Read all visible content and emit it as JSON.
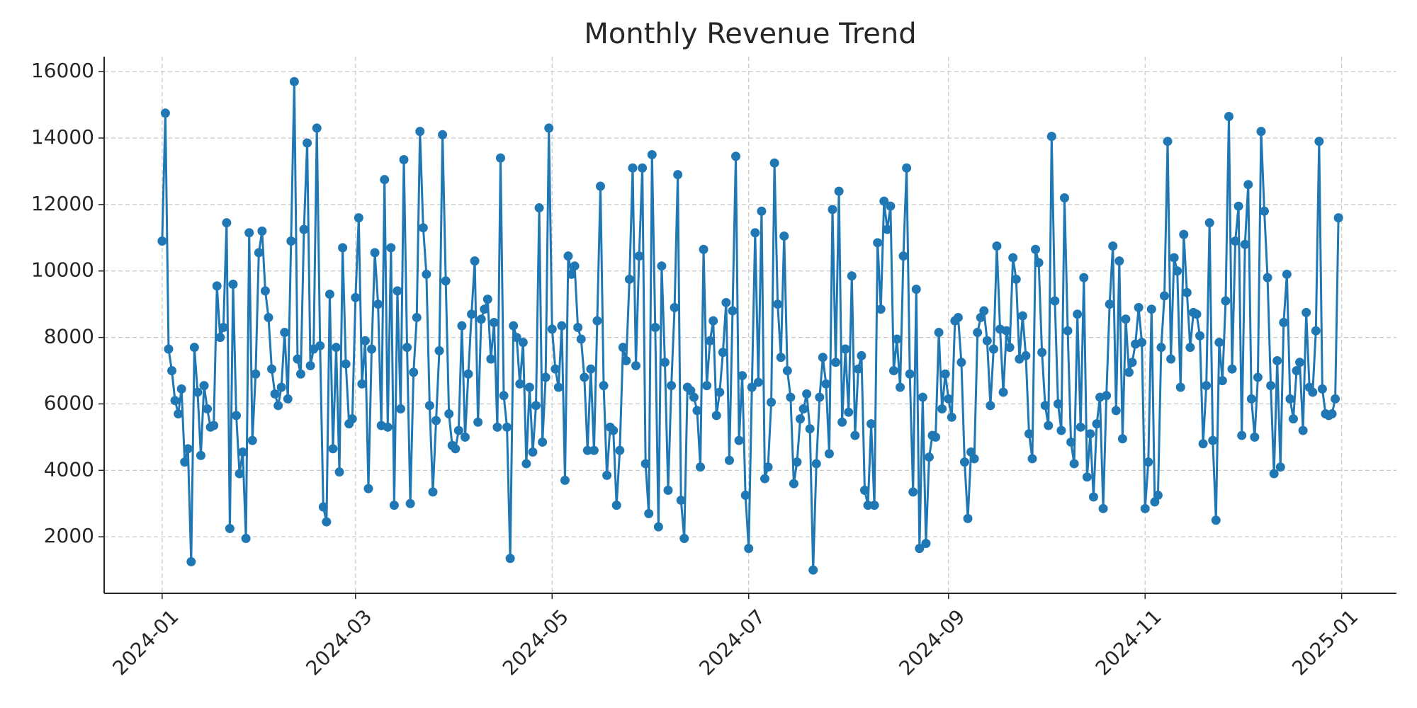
{
  "chart_data": {
    "type": "line",
    "title": "Monthly Revenue Trend",
    "series": [
      {
        "color": "#1f77b4",
        "values": [
          10900,
          14750,
          7650,
          7000,
          6100,
          5700,
          6450,
          4250,
          4650,
          1250,
          7700,
          6350,
          4450,
          6550,
          5850,
          5300,
          5350,
          9550,
          8000,
          8300,
          11450,
          2250,
          9600,
          5650,
          3900,
          4550,
          1950,
          11150,
          4900,
          6900,
          10550,
          11200,
          9400,
          8600,
          7050,
          6300,
          5950,
          6500,
          8150,
          6150,
          10900,
          15700,
          7350,
          6900,
          11250,
          13850,
          7150,
          7650,
          14300,
          7750,
          2900,
          2450,
          9300,
          4650,
          7700,
          3950,
          10700,
          7200,
          5400,
          5550,
          9200,
          11600,
          6600,
          7900,
          3450,
          7650,
          10550,
          9000,
          5350,
          12750,
          5300,
          10700,
          2950,
          9400,
          5850,
          13350,
          7700,
          3000,
          6950,
          8600,
          14200,
          11300,
          9900,
          5950,
          3350,
          5500,
          7600,
          14100,
          9700,
          5700,
          4750,
          4650,
          5200,
          8350,
          5000,
          6900,
          8700,
          10300,
          5450,
          8550,
          8850,
          9150,
          7350,
          8450,
          5300,
          13400,
          6250,
          5300,
          1350,
          8350,
          8000,
          6600,
          7850,
          4200,
          6500,
          4550,
          5950,
          11900,
          4850,
          6800,
          14300,
          8250,
          7050,
          6500,
          8350,
          3700,
          10450,
          9900,
          10150,
          8300,
          7950,
          6800,
          4600,
          7050,
          4600,
          8500,
          12550,
          6550,
          3850,
          5300,
          5200,
          2950,
          4600,
          7700,
          7300,
          9750,
          13100,
          7150,
          10450,
          13100,
          4200,
          2700,
          13500,
          8300,
          2300,
          10150,
          7250,
          3400,
          6550,
          8900,
          12900,
          3100,
          1950,
          6500,
          6400,
          6200,
          5800,
          4100,
          10650,
          6550,
          7900,
          8500,
          5650,
          6350,
          7550,
          9050,
          4300,
          8800,
          13450,
          4900,
          6850,
          3250,
          1650,
          6500,
          11150,
          6650,
          11800,
          3750,
          4100,
          6050,
          13250,
          9000,
          7400,
          11050,
          7000,
          6200,
          3600,
          4250,
          5550,
          5850,
          6300,
          5250,
          1000,
          4200,
          6200,
          7400,
          6600,
          4500,
          11850,
          7250,
          12400,
          5450,
          7650,
          5750,
          9850,
          5050,
          7050,
          7450,
          3400,
          2950,
          5400,
          2950,
          10850,
          8850,
          12100,
          11250,
          11950,
          7000,
          7950,
          6500,
          10450,
          13100,
          6900,
          3350,
          9450,
          1650,
          6200,
          1800,
          4400,
          5050,
          5000,
          8150,
          5850,
          6900,
          6150,
          5600,
          8500,
          8600,
          7250,
          4250,
          2550,
          4550,
          4350,
          8150,
          8600,
          8800,
          7900,
          5950,
          7650,
          10750,
          8250,
          6350,
          8200,
          7700,
          10400,
          9750,
          7350,
          8650,
          7450,
          5100,
          4350,
          10650,
          10250,
          7550,
          5950,
          5350,
          14050,
          9100,
          6000,
          5200,
          12200,
          8200,
          4850,
          4200,
          8700,
          5300,
          9800,
          3800,
          5100,
          3200,
          5400,
          6200,
          2850,
          6250,
          9000,
          10750,
          5800,
          10300,
          4950,
          8550,
          6950,
          7250,
          7800,
          8900,
          7850,
          2850,
          4250,
          8850,
          3050,
          3250,
          7700,
          9250,
          13900,
          7350,
          10400,
          10000,
          6500,
          11100,
          9350,
          7700,
          8750,
          8700,
          8050,
          4800,
          6550,
          11450,
          4900,
          2500,
          7850,
          6700,
          9100,
          14650,
          7050,
          10900,
          11950,
          5050,
          10800,
          12600,
          6150,
          5000,
          6800,
          14200,
          11800,
          9800,
          6550,
          3900,
          7300,
          4100,
          8450,
          9900,
          6150,
          5550,
          7000,
          7250,
          5200,
          8750,
          6500,
          6350,
          8200,
          13900,
          6450,
          5700,
          5650,
          5700,
          6150,
          11600
        ]
      }
    ],
    "xlim": [
      -18,
      383
    ],
    "xticks": [
      {
        "value": 0,
        "label": "2024-01"
      },
      {
        "value": 60,
        "label": "2024-03"
      },
      {
        "value": 121,
        "label": "2024-05"
      },
      {
        "value": 182,
        "label": "2024-07"
      },
      {
        "value": 244,
        "label": "2024-09"
      },
      {
        "value": 305,
        "label": "2024-11"
      },
      {
        "value": 366,
        "label": "2025-01"
      }
    ],
    "ylim": [
      300,
      16450
    ],
    "yticks": [
      2000,
      4000,
      6000,
      8000,
      10000,
      12000,
      14000,
      16000
    ],
    "grid": true
  }
}
